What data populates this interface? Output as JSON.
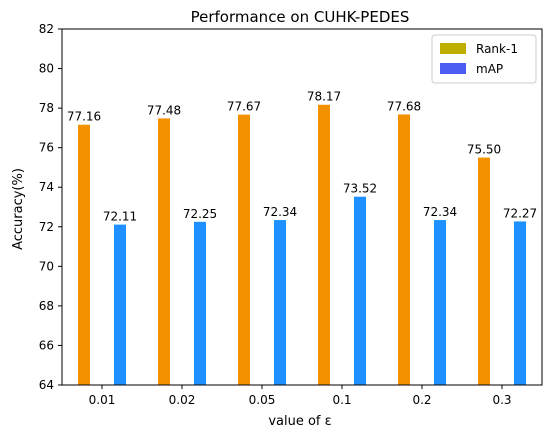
{
  "chart_data": {
    "type": "bar",
    "title": "Performance on CUHK-PEDES",
    "xlabel": "value of ε",
    "ylabel": "Accuracy(%)",
    "categories": [
      "0.01",
      "0.02",
      "0.05",
      "0.1",
      "0.2",
      "0.3"
    ],
    "ylim": [
      64,
      82
    ],
    "yticks": [
      64,
      66,
      68,
      70,
      72,
      74,
      76,
      78,
      80,
      82
    ],
    "legend_position": "top-right",
    "grid": false,
    "series": [
      {
        "name": "Rank-1",
        "values": [
          77.16,
          77.48,
          77.67,
          78.17,
          77.68,
          75.5
        ],
        "labels": [
          "77.16",
          "77.48",
          "77.67",
          "78.17",
          "77.68",
          "75.50"
        ],
        "color": "#F39200",
        "legend_color": "#BDAE00"
      },
      {
        "name": "mAP",
        "values": [
          72.11,
          72.25,
          72.34,
          73.52,
          72.34,
          72.27
        ],
        "labels": [
          "72.11",
          "72.25",
          "72.34",
          "73.52",
          "72.34",
          "72.27"
        ],
        "color": "#1E90FF",
        "legend_color": "#4A5CF2"
      }
    ]
  }
}
